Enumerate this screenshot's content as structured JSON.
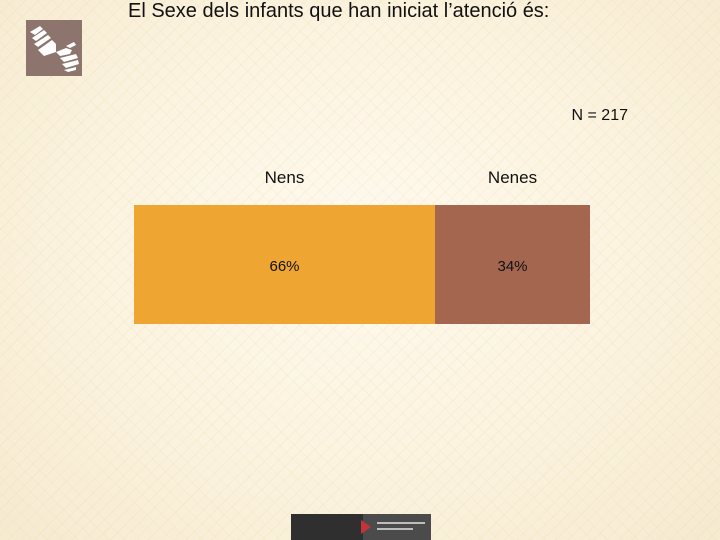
{
  "title": "El Sexe dels infants que han iniciat l’atenció és:",
  "sample_size": "N = 217",
  "colors": {
    "nens": "#eea531",
    "nenes": "#a56650",
    "logo_bg": "#8d746c"
  },
  "chart_data": {
    "type": "bar",
    "orientation": "horizontal-stacked",
    "title": "El Sexe dels infants que han iniciat l’atenció és:",
    "categories": [
      "Nens",
      "Nenes"
    ],
    "values": [
      66,
      34
    ],
    "value_labels": [
      "66%",
      "34%"
    ],
    "unit": "%",
    "grid": false,
    "legend": "none"
  }
}
